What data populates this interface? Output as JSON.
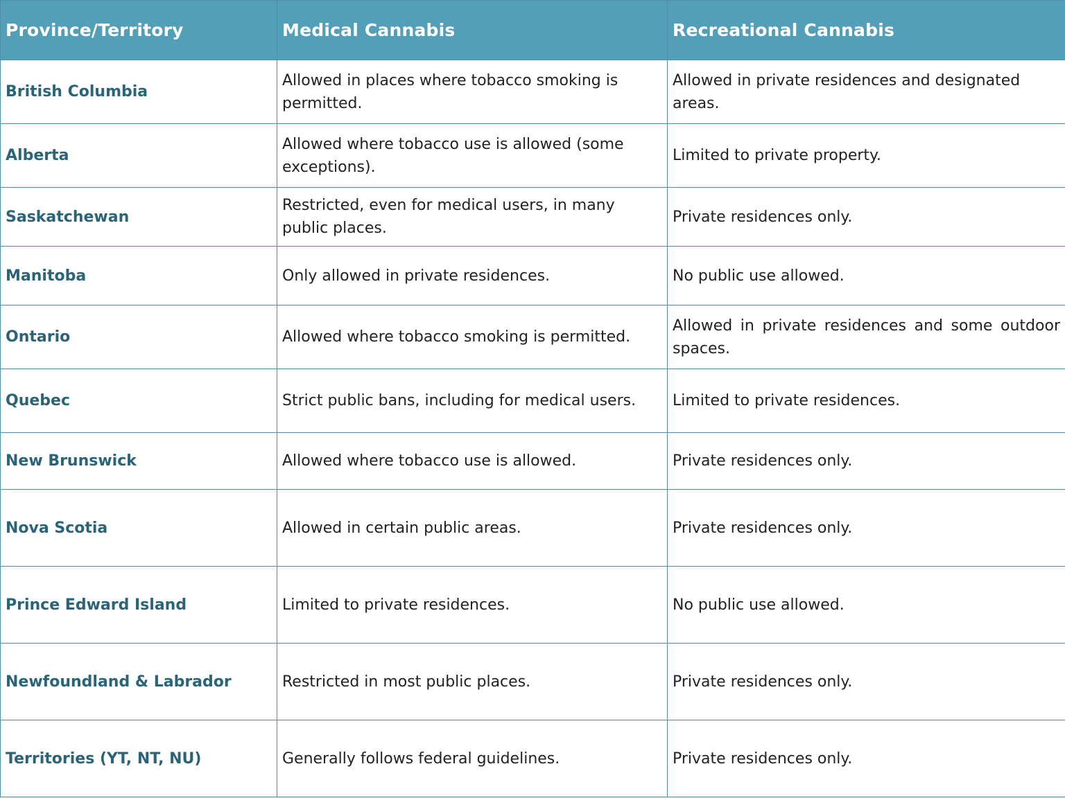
{
  "table": {
    "headers": [
      "Province/Territory",
      "Medical Cannabis",
      "Recreational Cannabis"
    ],
    "rows": [
      {
        "province": "British Columbia",
        "medical": "Allowed in places where tobacco smoking is permitted.",
        "recreational": "Allowed in private residences and designated areas."
      },
      {
        "province": "Alberta",
        "medical": "Allowed where tobacco use is allowed (some exceptions).",
        "recreational": "Limited to private property."
      },
      {
        "province": "Saskatchewan",
        "medical": "Restricted, even for medical users, in many public places.",
        "recreational": "Private residences only."
      },
      {
        "province": "Manitoba",
        "medical": "Only allowed in private residences.",
        "recreational": "No public use allowed."
      },
      {
        "province": "Ontario",
        "medical": "Allowed where tobacco smoking is permitted.",
        "recreational": "Allowed in private residences and some outdoor spaces."
      },
      {
        "province": "Quebec",
        "medical": "Strict public bans, including for medical users.",
        "recreational": "Limited to private residences."
      },
      {
        "province": "New Brunswick",
        "medical": "Allowed where tobacco use is allowed.",
        "recreational": "Private residences only."
      },
      {
        "province": "Nova Scotia",
        "medical": "Allowed in certain public areas.",
        "recreational": "Private residences only."
      },
      {
        "province": "Prince Edward Island",
        "medical": "Limited to private residences.",
        "recreational": "No public use allowed."
      },
      {
        "province": "Newfoundland & Labrador",
        "medical": "Restricted in most public places.",
        "recreational": "Private residences only."
      },
      {
        "province": "Territories (YT, NT, NU)",
        "medical": "Generally follows federal guidelines.",
        "recreational": "Private residences only."
      }
    ]
  },
  "colors": {
    "header_bg": "#539fb8",
    "header_text": "#ffffff",
    "province_text": "#2a6478",
    "border": "#4f8fa5"
  }
}
